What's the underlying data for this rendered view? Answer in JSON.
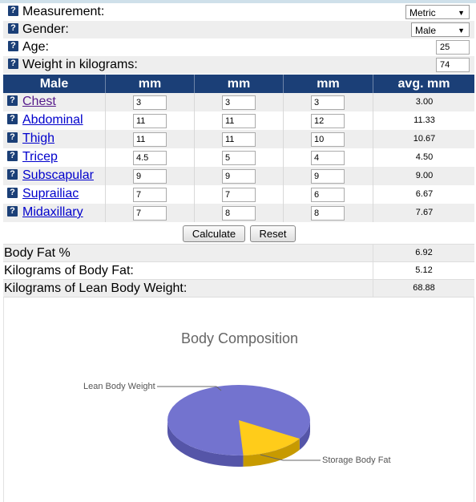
{
  "settings": {
    "measurement": {
      "label": "Measurement:",
      "value": "Metric"
    },
    "gender": {
      "label": "Gender:",
      "value": "Male"
    },
    "age": {
      "label": "Age:",
      "value": "25"
    },
    "weight": {
      "label": "Weight in kilograms:",
      "value": "74"
    }
  },
  "help_glyph": "?",
  "table": {
    "headers": [
      "Male",
      "mm",
      "mm",
      "mm",
      "avg. mm"
    ],
    "rows": [
      {
        "name": "Chest",
        "m1": "3",
        "m2": "3",
        "m3": "3",
        "avg": "3.00"
      },
      {
        "name": "Abdominal",
        "m1": "11",
        "m2": "11",
        "m3": "12",
        "avg": "11.33"
      },
      {
        "name": "Thigh",
        "m1": "11",
        "m2": "11",
        "m3": "10",
        "avg": "10.67"
      },
      {
        "name": "Tricep",
        "m1": "4.5",
        "m2": "5",
        "m3": "4",
        "avg": "4.50"
      },
      {
        "name": "Subscapular",
        "m1": "9",
        "m2": "9",
        "m3": "9",
        "avg": "9.00"
      },
      {
        "name": "Suprailiac",
        "m1": "7",
        "m2": "7",
        "m3": "6",
        "avg": "6.67"
      },
      {
        "name": "Midaxillary",
        "m1": "7",
        "m2": "8",
        "m3": "8",
        "avg": "7.67"
      }
    ]
  },
  "buttons": {
    "calculate": "Calculate",
    "reset": "Reset"
  },
  "results": {
    "body_fat_pct": {
      "label": "Body Fat %",
      "value": "6.92"
    },
    "kg_fat": {
      "label": "Kilograms of Body Fat:",
      "value": "5.12"
    },
    "kg_lean": {
      "label": "Kilograms of Lean Body Weight:",
      "value": "68.88"
    }
  },
  "colors": {
    "header": "#1b3f77",
    "lean": "#7373cf",
    "fat": "#ffcc1a"
  },
  "chart_data": {
    "type": "pie",
    "title": "Body Composition",
    "slices": [
      {
        "label": "Lean Body Weight",
        "value": 68.88
      },
      {
        "label": "Storage Body Fat",
        "value": 5.12
      }
    ]
  }
}
